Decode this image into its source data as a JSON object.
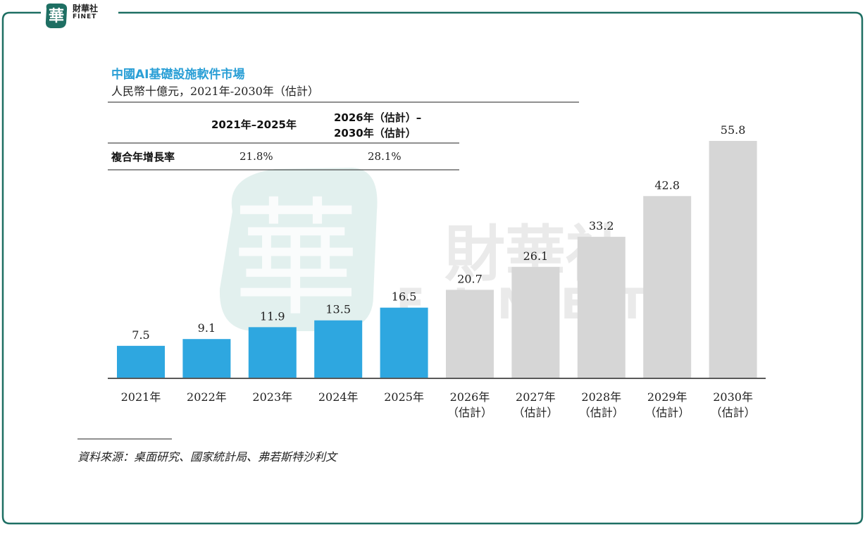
{
  "logo": {
    "name_cn": "財華社",
    "name_en": "FINET",
    "emblem_char": "華"
  },
  "header": {
    "title": "中國AI基礎設施軟件市場",
    "subtitle": "人民幣十億元，2021年-2030年（估計）"
  },
  "cagr_table": {
    "col1_header": "2021年–2025年",
    "col2_header_line1": "2026年（估計）–",
    "col2_header_line2": "2030年（估計）",
    "row_label": "複合年增長率",
    "col1_value": "21.8%",
    "col2_value": "28.1%"
  },
  "watermark": {
    "cn": "財華社",
    "en": "FINET"
  },
  "colors": {
    "actual": "#2ea7e0",
    "estimate": "#d6d6d6",
    "frame": "#1e6f63",
    "title": "#2a9fd6"
  },
  "chart_data": {
    "type": "bar",
    "categories": [
      "2021年",
      "2022年",
      "2023年",
      "2024年",
      "2025年",
      "2026年\n（估計）",
      "2027年\n（估計）",
      "2028年\n（估計）",
      "2029年\n（估計）",
      "2030年\n（估計）"
    ],
    "category_lines": [
      [
        "2021年",
        ""
      ],
      [
        "2022年",
        ""
      ],
      [
        "2023年",
        ""
      ],
      [
        "2024年",
        ""
      ],
      [
        "2025年",
        ""
      ],
      [
        "2026年",
        "（估計）"
      ],
      [
        "2027年",
        "（估計）"
      ],
      [
        "2028年",
        "（估計）"
      ],
      [
        "2029年",
        "（估計）"
      ],
      [
        "2030年",
        "（估計）"
      ]
    ],
    "values": [
      7.5,
      9.1,
      11.9,
      13.5,
      16.5,
      20.7,
      26.1,
      33.2,
      42.8,
      55.8
    ],
    "value_labels": [
      "7.5",
      "9.1",
      "11.9",
      "13.5",
      "16.5",
      "20.7",
      "26.1",
      "33.2",
      "42.8",
      "55.8"
    ],
    "estimated": [
      false,
      false,
      false,
      false,
      false,
      true,
      true,
      true,
      true,
      true
    ],
    "title": "中國AI基礎設施軟件市場",
    "xlabel": "",
    "ylabel": "",
    "ylim": [
      0,
      60
    ],
    "grid": false
  },
  "source": "資料來源：桌面研究、國家統計局、弗若斯特沙利文"
}
